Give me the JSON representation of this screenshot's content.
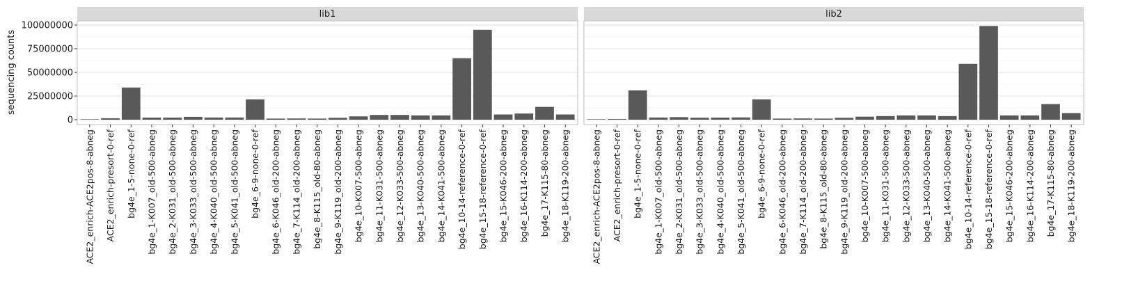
{
  "chart_data": {
    "type": "bar",
    "ylabel": "sequencing counts",
    "xlabel": "",
    "ylim": [
      0,
      100000000
    ],
    "yticks": [
      0,
      25000000,
      50000000,
      75000000,
      100000000
    ],
    "ytick_labels": [
      "0",
      "25000000",
      "50000000",
      "75000000",
      "100000000"
    ],
    "grid": true,
    "bar_color": "#595959",
    "strip_color": "#d9d9d9",
    "categories": [
      "ACE2_enrich-ACE2pos-8-abneg",
      "ACE2_enrich-presort-0-ref",
      "bg4e_1-5-none-0-ref",
      "bg4e_1-K007_old-500-abneg",
      "bg4e_2-K031_old-500-abneg",
      "bg4e_3-K033_old-500-abneg",
      "bg4e_4-K040_old-500-abneg",
      "bg4e_5-K041_old-500-abneg",
      "bg4e_6-9-none-0-ref",
      "bg4e_6-K046_old-200-abneg",
      "bg4e_7-K114_old-200-abneg",
      "bg4e_8-K115_old-80-abneg",
      "bg4e_9-K119_old-200-abneg",
      "bg4e_10-K007-500-abneg",
      "bg4e_11-K031-500-abneg",
      "bg4e_12-K033-500-abneg",
      "bg4e_13-K040-500-abneg",
      "bg4e_14-K041-500-abneg",
      "bg4e_10-14-reference-0-ref",
      "bg4e_15-18-reference-0-ref",
      "bg4e_15-K046-200-abneg",
      "bg4e_16-K114-200-abneg",
      "bg4e_17-K115-80-abneg",
      "bg4e_18-K119-200-abneg"
    ],
    "panels": [
      {
        "title": "lib1",
        "values": [
          500000,
          1500000,
          34000000,
          2200000,
          2200000,
          3000000,
          2300000,
          2300000,
          21500000,
          1200000,
          1300000,
          1200000,
          2000000,
          3500000,
          5000000,
          5000000,
          4500000,
          4500000,
          65000000,
          95000000,
          5500000,
          6500000,
          13500000,
          5500000
        ]
      },
      {
        "title": "lib2",
        "values": [
          500000,
          700000,
          31000000,
          2300000,
          2700000,
          2100000,
          2200000,
          2400000,
          21500000,
          1200000,
          1300000,
          1200000,
          2000000,
          3200000,
          3800000,
          4500000,
          4500000,
          3800000,
          59000000,
          99000000,
          4500000,
          4500000,
          16500000,
          7000000
        ]
      }
    ]
  }
}
